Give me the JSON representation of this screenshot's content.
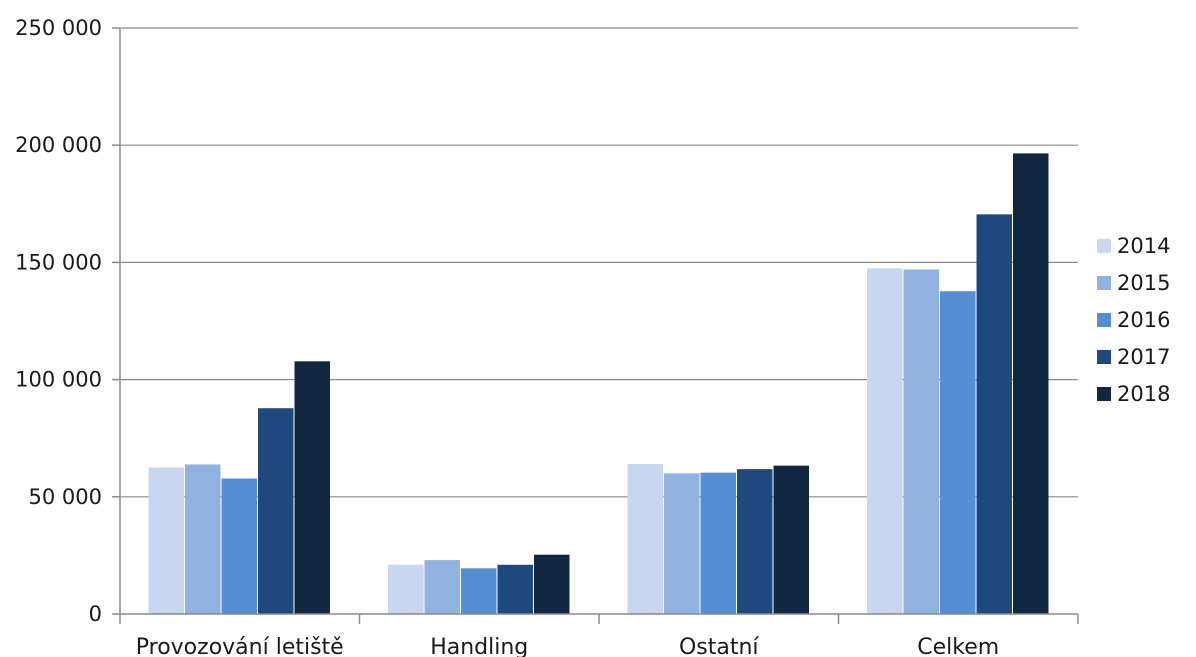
{
  "chart_data": {
    "type": "bar",
    "categories": [
      "Provozování letiště",
      "Handling",
      "Ostatní",
      "Celkem"
    ],
    "series": [
      {
        "name": "2014",
        "color": "#c6d7ef",
        "values": [
          62500,
          21000,
          64000,
          147500
        ]
      },
      {
        "name": "2015",
        "color": "#8fb2e0",
        "values": [
          63800,
          23000,
          60000,
          147000
        ]
      },
      {
        "name": "2016",
        "color": "#558ed5",
        "values": [
          57800,
          19500,
          60300,
          137700
        ]
      },
      {
        "name": "2017",
        "color": "#1f497d",
        "values": [
          87800,
          21000,
          61800,
          170500
        ]
      },
      {
        "name": "2018",
        "color": "#11273f",
        "values": [
          107800,
          25300,
          63300,
          196500
        ]
      }
    ],
    "y_ticks": [
      "0",
      "50 000",
      "100 000",
      "150 000",
      "200 000",
      "250 000"
    ],
    "ylim": [
      0,
      250000
    ],
    "y_step": 50000,
    "grid": true,
    "legend_position": "right"
  }
}
